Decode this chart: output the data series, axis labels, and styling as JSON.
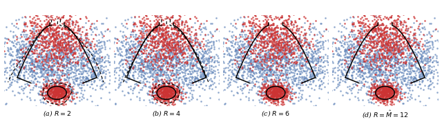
{
  "panels": [
    {
      "label": "(a) $R = 2$",
      "has_dashed": true,
      "dashed_dist": 0.4
    },
    {
      "label": "(b) $R = 4$",
      "has_dashed": true,
      "dashed_dist": 0.18
    },
    {
      "label": "(c) $R = 6$",
      "has_dashed": false,
      "dashed_dist": 0.0
    },
    {
      "label": "(d) $R = \\hat{M} = 12$",
      "has_dashed": false,
      "dashed_dist": 0.0
    }
  ],
  "blue_color": "#6688bb",
  "red_color": "#cc3333",
  "bg_color": "#ffffff",
  "seed": 7
}
